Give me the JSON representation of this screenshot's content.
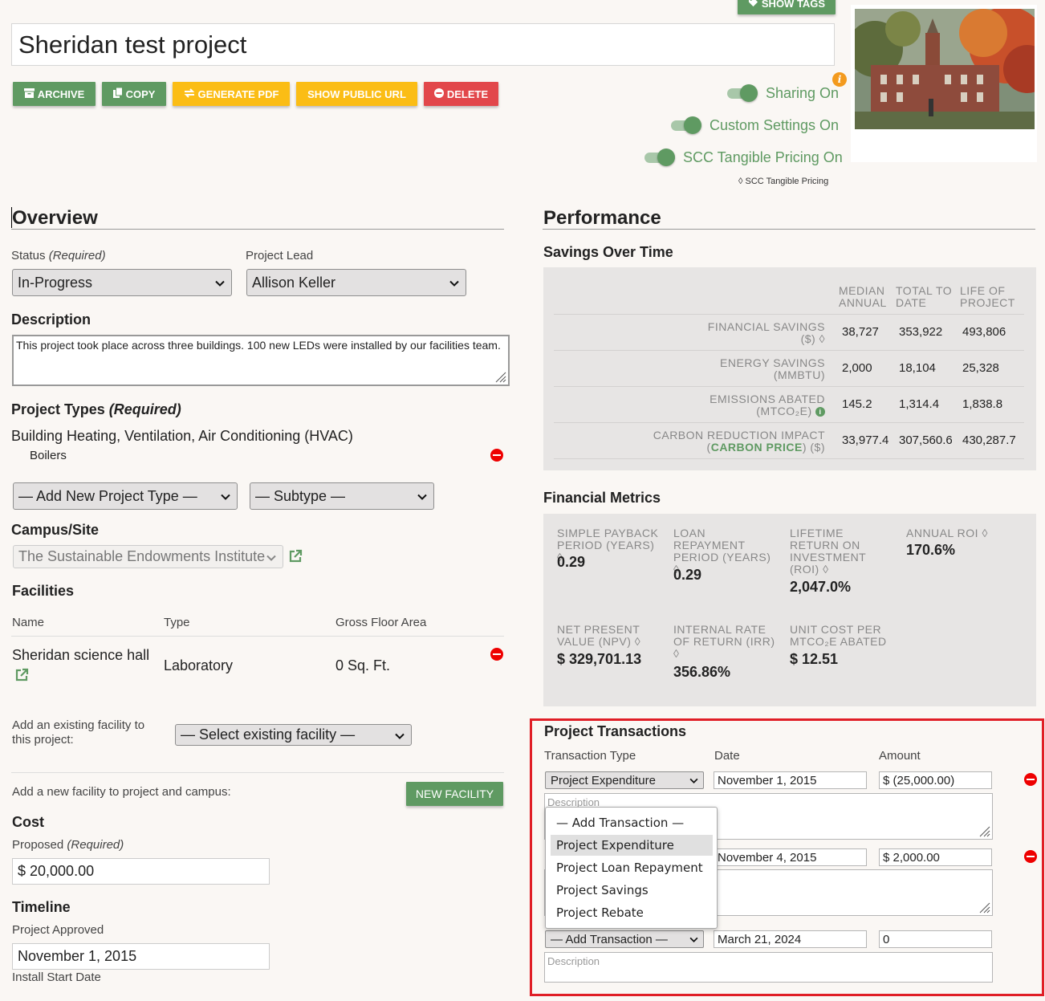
{
  "header": {
    "show_tags": "SHOW TAGS",
    "title": "Sheridan test project",
    "buttons": {
      "archive": "ARCHIVE",
      "copy": "COPY",
      "generate_pdf": "GENERATE PDF",
      "show_public_url": "SHOW PUBLIC URL",
      "delete": "DELETE"
    },
    "toggles": {
      "sharing": "Sharing On",
      "custom": "Custom Settings On",
      "scc": "SCC Tangible Pricing On"
    },
    "scc_note": "◊ SCC Tangible Pricing"
  },
  "overview": {
    "heading": "Overview",
    "status_label": "Status",
    "required": "(Required)",
    "status_value": "In-Progress",
    "lead_label": "Project Lead",
    "lead_value": "Allison Keller",
    "description_label": "Description",
    "description": "This project took place across three buildings. 100 new LEDs were installed by our facilities team.",
    "types_label": "Project Types",
    "types_required": "(Required)",
    "type_name": "Building Heating, Ventilation, Air Conditioning (HVAC)",
    "subtype_name": "Boilers",
    "add_type": "— Add New Project Type —",
    "subtype": "— Subtype —",
    "campus_label": "Campus/Site",
    "campus_value": "The Sustainable Endowments Institute",
    "facilities_label": "Facilities",
    "fac_cols": {
      "name": "Name",
      "type": "Type",
      "area": "Gross Floor Area"
    },
    "facility": {
      "name": "Sheridan science hall",
      "type": "Laboratory",
      "area": "0 Sq. Ft."
    },
    "existing_label": "Add an existing facility to this project:",
    "existing_select": "— Select existing facility —",
    "new_label": "Add a new facility to project and campus:",
    "new_button": "NEW FACILITY",
    "cost_label": "Cost",
    "proposed_label": "Proposed",
    "proposed_value": "$ 20,000.00",
    "timeline_label": "Timeline",
    "approved_label": "Project Approved",
    "approved_value": "November 1, 2015",
    "install_label": "Install Start Date"
  },
  "performance": {
    "heading": "Performance",
    "savings_heading": "Savings Over Time",
    "cols": [
      "MEDIAN ANNUAL",
      "TOTAL TO DATE",
      "LIFE OF PROJECT"
    ],
    "rows": [
      {
        "l1": "FINANCIAL SAVINGS",
        "l2": "($) ◊",
        "v": [
          "38,727",
          "353,922",
          "493,806"
        ]
      },
      {
        "l1": "ENERGY SAVINGS",
        "l2": "(MMBTU)",
        "v": [
          "2,000",
          "18,104",
          "25,328"
        ]
      },
      {
        "l1": "EMISSIONS ABATED",
        "l2": "(MTCO₂E)",
        "v": [
          "145.2",
          "1,314.4",
          "1,838.8"
        ]
      },
      {
        "l1": "CARBON REDUCTION IMPACT",
        "l2a": "(",
        "l2b": "CARBON PRICE",
        "l2c": ") ($)",
        "v": [
          "33,977.4",
          "307,560.6",
          "430,287.7"
        ]
      }
    ],
    "fin_heading": "Financial Metrics",
    "metrics": [
      {
        "label": "SIMPLE PAYBACK PERIOD (YEARS) ◊",
        "value": "0.29"
      },
      {
        "label": "LOAN REPAYMENT PERIOD (YEARS) ◊",
        "value": "0.29"
      },
      {
        "label": "LIFETIME RETURN ON INVESTMENT (ROI) ◊",
        "value": "2,047.0%"
      },
      {
        "label": "ANNUAL ROI ◊",
        "value": "170.6%"
      },
      {
        "label": "NET PRESENT VALUE (NPV) ◊",
        "value": "$ 329,701.13"
      },
      {
        "label": "INTERNAL RATE OF RETURN (IRR) ◊",
        "value": "356.86%"
      },
      {
        "label": "UNIT COST PER MTCO₂E ABATED",
        "value": "$ 12.51"
      }
    ]
  },
  "transactions": {
    "heading": "Project Transactions",
    "cols": {
      "type": "Transaction Type",
      "date": "Date",
      "amount": "Amount"
    },
    "desc_placeholder": "Description",
    "rows": [
      {
        "type": "Project Expenditure",
        "date": "November 1, 2015",
        "amount": "$ (25,000.00)"
      },
      {
        "type": "",
        "date": "November 4, 2015",
        "amount": "$ 2,000.00"
      },
      {
        "type": "— Add Transaction —",
        "date": "March 21, 2024",
        "amount": "0"
      }
    ],
    "dropdown": [
      "— Add Transaction —",
      "Project Expenditure",
      "Project Loan Repayment",
      "Project Savings",
      "Project Rebate"
    ]
  },
  "colors": {
    "green": "#5f9a62",
    "yellow": "#fbbd15",
    "red": "#e2474b",
    "highlight": "#e01e26"
  }
}
